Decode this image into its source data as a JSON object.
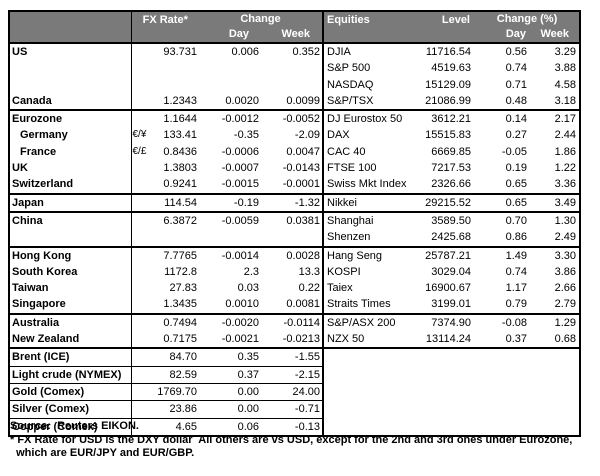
{
  "colors": {
    "header_bg": "#7a7a7a",
    "header_text": "#ffffff",
    "border": "#000000",
    "background": "#ffffff"
  },
  "header": {
    "fx_rate": "FX Rate*",
    "change": "Change",
    "day": "Day",
    "week": "Week",
    "equities": "Equities",
    "level": "Level",
    "change_pct": "Change (%)"
  },
  "sections": [
    {
      "rows": [
        {
          "left": {
            "label": "US",
            "fx": "93.731",
            "day": "0.006",
            "week": "0.352"
          },
          "right": {
            "label": "DJIA",
            "level": "11716.54",
            "day": "0.56",
            "week": "3.29"
          }
        },
        {
          "left": {},
          "right": {
            "label": "S&P 500",
            "level": "4519.63",
            "day": "0.74",
            "week": "3.88"
          }
        },
        {
          "left": {},
          "right": {
            "label": "NASDAQ",
            "level": "15129.09",
            "day": "0.71",
            "week": "4.58"
          }
        },
        {
          "left": {
            "label": "Canada",
            "fx": "1.2343",
            "day": "0.0020",
            "week": "0.0099"
          },
          "right": {
            "label": "S&P/TSX",
            "level": "21086.99",
            "day": "0.48",
            "week": "3.18"
          }
        }
      ]
    },
    {
      "rows": [
        {
          "left": {
            "label": "Eurozone",
            "fx": "1.1644",
            "day": "-0.0012",
            "week": "-0.0052"
          },
          "right": {
            "label": "DJ Eurostox 50",
            "level": "3612.21",
            "day": "0.14",
            "week": "2.17"
          }
        },
        {
          "left": {
            "label": "Germany",
            "indent": true,
            "pair": "€/¥",
            "fx": "133.41",
            "day": "-0.35",
            "week": "-2.09"
          },
          "right": {
            "label": "DAX",
            "level": "15515.83",
            "day": "0.27",
            "week": "2.44"
          }
        },
        {
          "left": {
            "label": "France",
            "indent": true,
            "pair": "€/£",
            "fx": "0.8436",
            "day": "-0.0006",
            "week": "0.0047"
          },
          "right": {
            "label": "CAC 40",
            "level": "6669.85",
            "day": "-0.05",
            "week": "1.86"
          }
        },
        {
          "left": {
            "label": "UK",
            "fx": "1.3803",
            "day": "-0.0007",
            "week": "-0.0143"
          },
          "right": {
            "label": "FTSE 100",
            "level": "7217.53",
            "day": "0.19",
            "week": "1.22"
          }
        },
        {
          "left": {
            "label": "Switzerland",
            "fx": "0.9241",
            "day": "-0.0015",
            "week": "-0.0001"
          },
          "right": {
            "label": "Swiss Mkt Index",
            "level": "2326.66",
            "day": "0.65",
            "week": "3.36"
          }
        }
      ]
    },
    {
      "rows": [
        {
          "left": {
            "label": "Japan",
            "fx": "114.54",
            "day": "-0.19",
            "week": "-1.32"
          },
          "right": {
            "label": "Nikkei",
            "level": "29215.52",
            "day": "0.65",
            "week": "3.49"
          }
        }
      ]
    },
    {
      "rows": [
        {
          "left": {
            "label": "China",
            "fx": "6.3872",
            "day": "-0.0059",
            "week": "0.0381"
          },
          "right": {
            "label": "Shanghai",
            "level": "3589.50",
            "day": "0.70",
            "week": "1.30"
          }
        },
        {
          "left": {},
          "right": {
            "label": "Shenzen",
            "level": "2425.68",
            "day": "0.86",
            "week": "2.49"
          }
        }
      ]
    },
    {
      "rows": [
        {
          "left": {
            "label": "Hong Kong",
            "fx": "7.7765",
            "day": "-0.0014",
            "week": "0.0028"
          },
          "right": {
            "label": "Hang Seng",
            "level": "25787.21",
            "day": "1.49",
            "week": "3.30"
          }
        },
        {
          "left": {
            "label": "South Korea",
            "fx": "1172.8",
            "day": "2.3",
            "week": "13.3"
          },
          "right": {
            "label": "KOSPI",
            "level": "3029.04",
            "day": "0.74",
            "week": "3.86"
          }
        },
        {
          "left": {
            "label": "Taiwan",
            "fx": "27.83",
            "day": "0.03",
            "week": "0.22"
          },
          "right": {
            "label": "Taiex",
            "level": "16900.67",
            "day": "1.17",
            "week": "2.66"
          }
        },
        {
          "left": {
            "label": "Singapore",
            "fx": "1.3435",
            "day": "0.0010",
            "week": "0.0081"
          },
          "right": {
            "label": "Straits Times",
            "level": "3199.01",
            "day": "0.79",
            "week": "2.79"
          }
        }
      ]
    },
    {
      "rows": [
        {
          "left": {
            "label": "Australia",
            "fx": "0.7494",
            "day": "-0.0020",
            "week": "-0.0114"
          },
          "right": {
            "label": "S&P/ASX 200",
            "level": "7374.90",
            "day": "-0.08",
            "week": "1.29"
          }
        },
        {
          "left": {
            "label": "New Zealand",
            "fx": "0.7175",
            "day": "-0.0021",
            "week": "-0.0213"
          },
          "right": {
            "label": "NZX 50",
            "level": "13114.24",
            "day": "0.37",
            "week": "0.68"
          }
        }
      ]
    },
    {
      "row_dividers": true,
      "rows": [
        {
          "left": {
            "label": "Brent (ICE)",
            "fx": "84.70",
            "day": "0.35",
            "week": "-1.55"
          },
          "right": {}
        },
        {
          "left": {
            "label": "Light crude (NYMEX)",
            "fx": "82.59",
            "day": "0.37",
            "week": "-2.15"
          },
          "right": {}
        },
        {
          "left": {
            "label": "Gold (Comex)",
            "fx": "1769.70",
            "day": "0.00",
            "week": "24.00"
          },
          "right": {}
        },
        {
          "left": {
            "label": "Silver (Comex)",
            "fx": "23.86",
            "day": "0.00",
            "week": "-0.71"
          },
          "right": {}
        },
        {
          "left": {
            "label": "Copper (Comex)",
            "fx": "4.65",
            "day": "0.06",
            "week": "-0.13"
          },
          "right": {}
        }
      ]
    }
  ],
  "footer": {
    "source": "Source:  Reuters EIKON.",
    "note1": "* FX Rate for USD is the DXY dollar  All others are vs USD, except for the 2nd and 3rd ones under Eurozone,",
    "note2": "  which are EUR/JPY and EUR/GBP."
  }
}
